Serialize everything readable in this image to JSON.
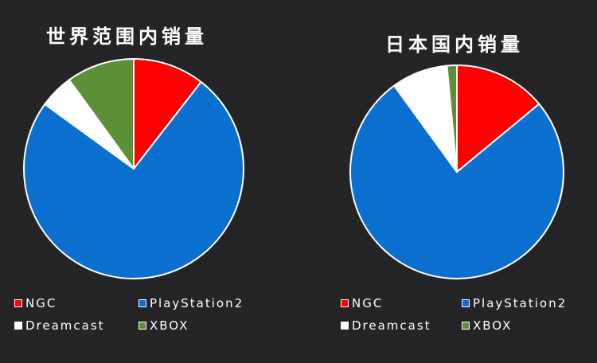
{
  "chart_data": [
    {
      "type": "pie",
      "title": "世界范围内销量",
      "slices": [
        {
          "label": "NGC",
          "value": 10.5
        },
        {
          "label": "PlayStation2",
          "value": 74.5
        },
        {
          "label": "Dreamcast",
          "value": 5.0
        },
        {
          "label": "XBOX",
          "value": 10.0
        }
      ],
      "legend": [
        "NGC",
        "PlayStation2",
        "Dreamcast",
        "XBOX"
      ]
    },
    {
      "type": "pie",
      "title": "日本国内销量",
      "slices": [
        {
          "label": "NGC",
          "value": 14.0
        },
        {
          "label": "PlayStation2",
          "value": 76.0
        },
        {
          "label": "Dreamcast",
          "value": 8.5
        },
        {
          "label": "XBOX",
          "value": 1.5
        }
      ],
      "legend": [
        "NGC",
        "PlayStation2",
        "Dreamcast",
        "XBOX"
      ]
    }
  ],
  "colors": {
    "NGC": "#ff0000",
    "PlayStation2": "#0a6fcf",
    "Dreamcast": "#ffffff",
    "XBOX": "#5c8f38",
    "background": "#242426"
  }
}
